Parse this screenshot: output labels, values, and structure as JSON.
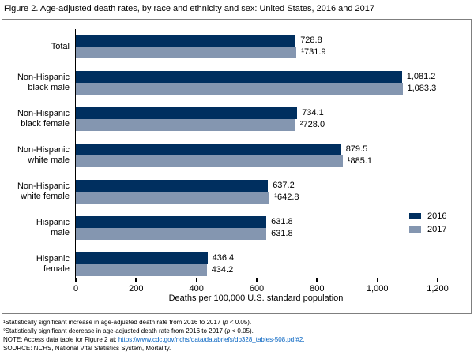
{
  "title": "Figure 2. Age-adjusted death rates, by race and ethnicity and sex: United States, 2016 and 2017",
  "chart_data": {
    "type": "bar",
    "orientation": "horizontal",
    "categories": [
      "Total",
      "Non-Hispanic black male",
      "Non-Hispanic black female",
      "Non-Hispanic white male",
      "Non-Hispanic white female",
      "Hispanic male",
      "Hispanic female"
    ],
    "category_lines": [
      [
        "Total"
      ],
      [
        "Non-Hispanic",
        "black male"
      ],
      [
        "Non-Hispanic",
        "black female"
      ],
      [
        "Non-Hispanic",
        "white male"
      ],
      [
        "Non-Hispanic",
        "white female"
      ],
      [
        "Hispanic",
        "male"
      ],
      [
        "Hispanic",
        "female"
      ]
    ],
    "series": [
      {
        "name": "2016",
        "color": "#002f5f",
        "values": [
          728.8,
          1081.2,
          734.1,
          879.5,
          637.2,
          631.8,
          436.4
        ],
        "labels": [
          "728.8",
          "1,081.2",
          "734.1",
          "879.5",
          "637.2",
          "631.8",
          "436.4"
        ]
      },
      {
        "name": "2017",
        "color": "#8496b0",
        "values": [
          731.9,
          1083.3,
          728.0,
          885.1,
          642.8,
          631.8,
          434.2
        ],
        "labels": [
          "¹731.9",
          "1,083.3",
          "²728.0",
          "¹885.1",
          "¹642.8",
          "631.8",
          "434.2"
        ]
      }
    ],
    "xlabel": "Deaths per 100,000 U.S. standard population",
    "xlim": [
      0,
      1200
    ],
    "x_tick_values": [
      0,
      200,
      400,
      600,
      800,
      1000,
      1200
    ],
    "x_tick_labels": [
      "0",
      "200",
      "400",
      "600",
      "800",
      "1,000",
      "1,200"
    ],
    "grid": false,
    "legend_position": "center-right"
  },
  "footnotes": {
    "fn1": {
      "pre": "¹Statistically significant increase in age-adjusted death rate from 2016 to 2017 (",
      "italic": "p",
      "post": " < 0.05)."
    },
    "fn2": {
      "pre": "²Statistically significant decrease in age-adjusted death rate from 2016 to 2017 (",
      "italic": "p",
      "post": " < 0.05)."
    },
    "note": {
      "pre": "NOTE: Access data table for Figure 2 at: ",
      "link": "https://www.cdc.gov/nchs/data/databriefs/db328_tables-508.pdf#2."
    },
    "source": "SOURCE: NCHS, National Vital Statistics System, Mortality."
  }
}
